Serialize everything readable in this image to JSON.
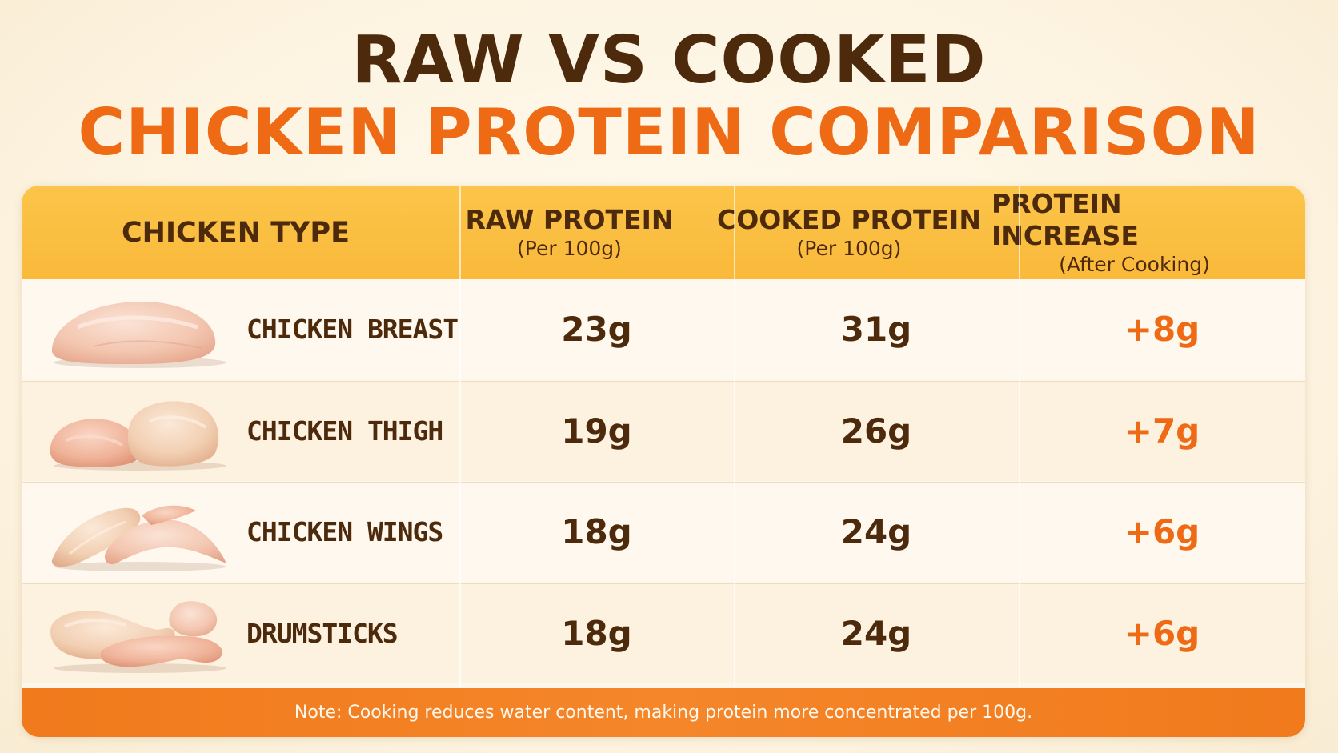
{
  "title": {
    "line1": "RAW VS COOKED",
    "line2": "CHICKEN PROTEIN COMPARISON"
  },
  "header": {
    "col1": "CHICKEN TYPE",
    "col2_main": "RAW PROTEIN",
    "col2_sub": "(Per 100g)",
    "col3_main": "COOKED PROTEIN",
    "col3_sub": "(Per 100g)",
    "col4_main": "PROTEIN INCREASE",
    "col4_sub": "(After Cooking)"
  },
  "note": "Note: Cooking reduces water content, making protein more concentrated per 100g.",
  "colors": {
    "title_dark": "#4e2a0c",
    "title_accent": "#ee6a14",
    "header_bg": "#fbc54a",
    "footer_bg": "#f07a1c"
  },
  "chart_data": {
    "type": "table",
    "columns": [
      "CHICKEN TYPE",
      "RAW PROTEIN (Per 100g)",
      "COOKED PROTEIN (Per 100g)",
      "PROTEIN INCREASE (After Cooking)"
    ],
    "rows": [
      {
        "type": "CHICKEN BREAST",
        "image": "chicken-breast-image",
        "raw": "23g",
        "cooked": "31g",
        "increase": "+8g"
      },
      {
        "type": "CHICKEN THIGH",
        "image": "chicken-thigh-image",
        "raw": "19g",
        "cooked": "26g",
        "increase": "+7g"
      },
      {
        "type": "CHICKEN WINGS",
        "image": "chicken-wings-image",
        "raw": "18g",
        "cooked": "24g",
        "increase": "+6g"
      },
      {
        "type": "DRUMSTICKS",
        "image": "drumsticks-image",
        "raw": "18g",
        "cooked": "24g",
        "increase": "+6g"
      }
    ]
  }
}
